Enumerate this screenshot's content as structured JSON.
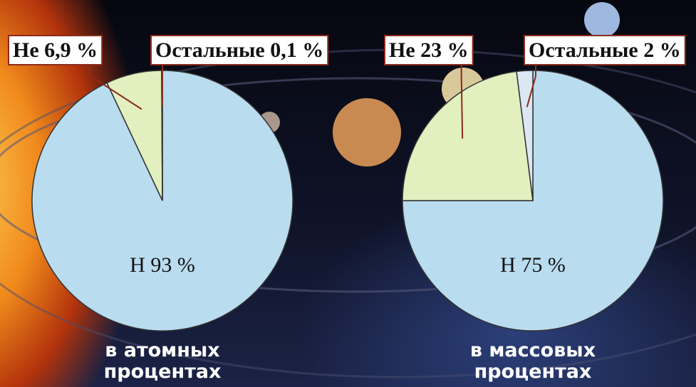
{
  "chart_data": [
    {
      "type": "pie",
      "values": [
        93,
        6.9,
        0.1
      ],
      "value_labels": [
        "H 93 %",
        "He 6,9 %",
        "Остальные 0,1 %"
      ],
      "colors": [
        "#b9dcef",
        "#e2efbf",
        "#dbe7f2"
      ],
      "caption": "в атомных процентах"
    },
    {
      "type": "pie",
      "values": [
        75,
        23,
        2
      ],
      "value_labels": [
        "H 75 %",
        "He 23 %",
        "Остальные 2 %"
      ],
      "colors": [
        "#b9dcef",
        "#e2efbf",
        "#dbe7f2"
      ],
      "caption": "в массовых процентах"
    }
  ]
}
